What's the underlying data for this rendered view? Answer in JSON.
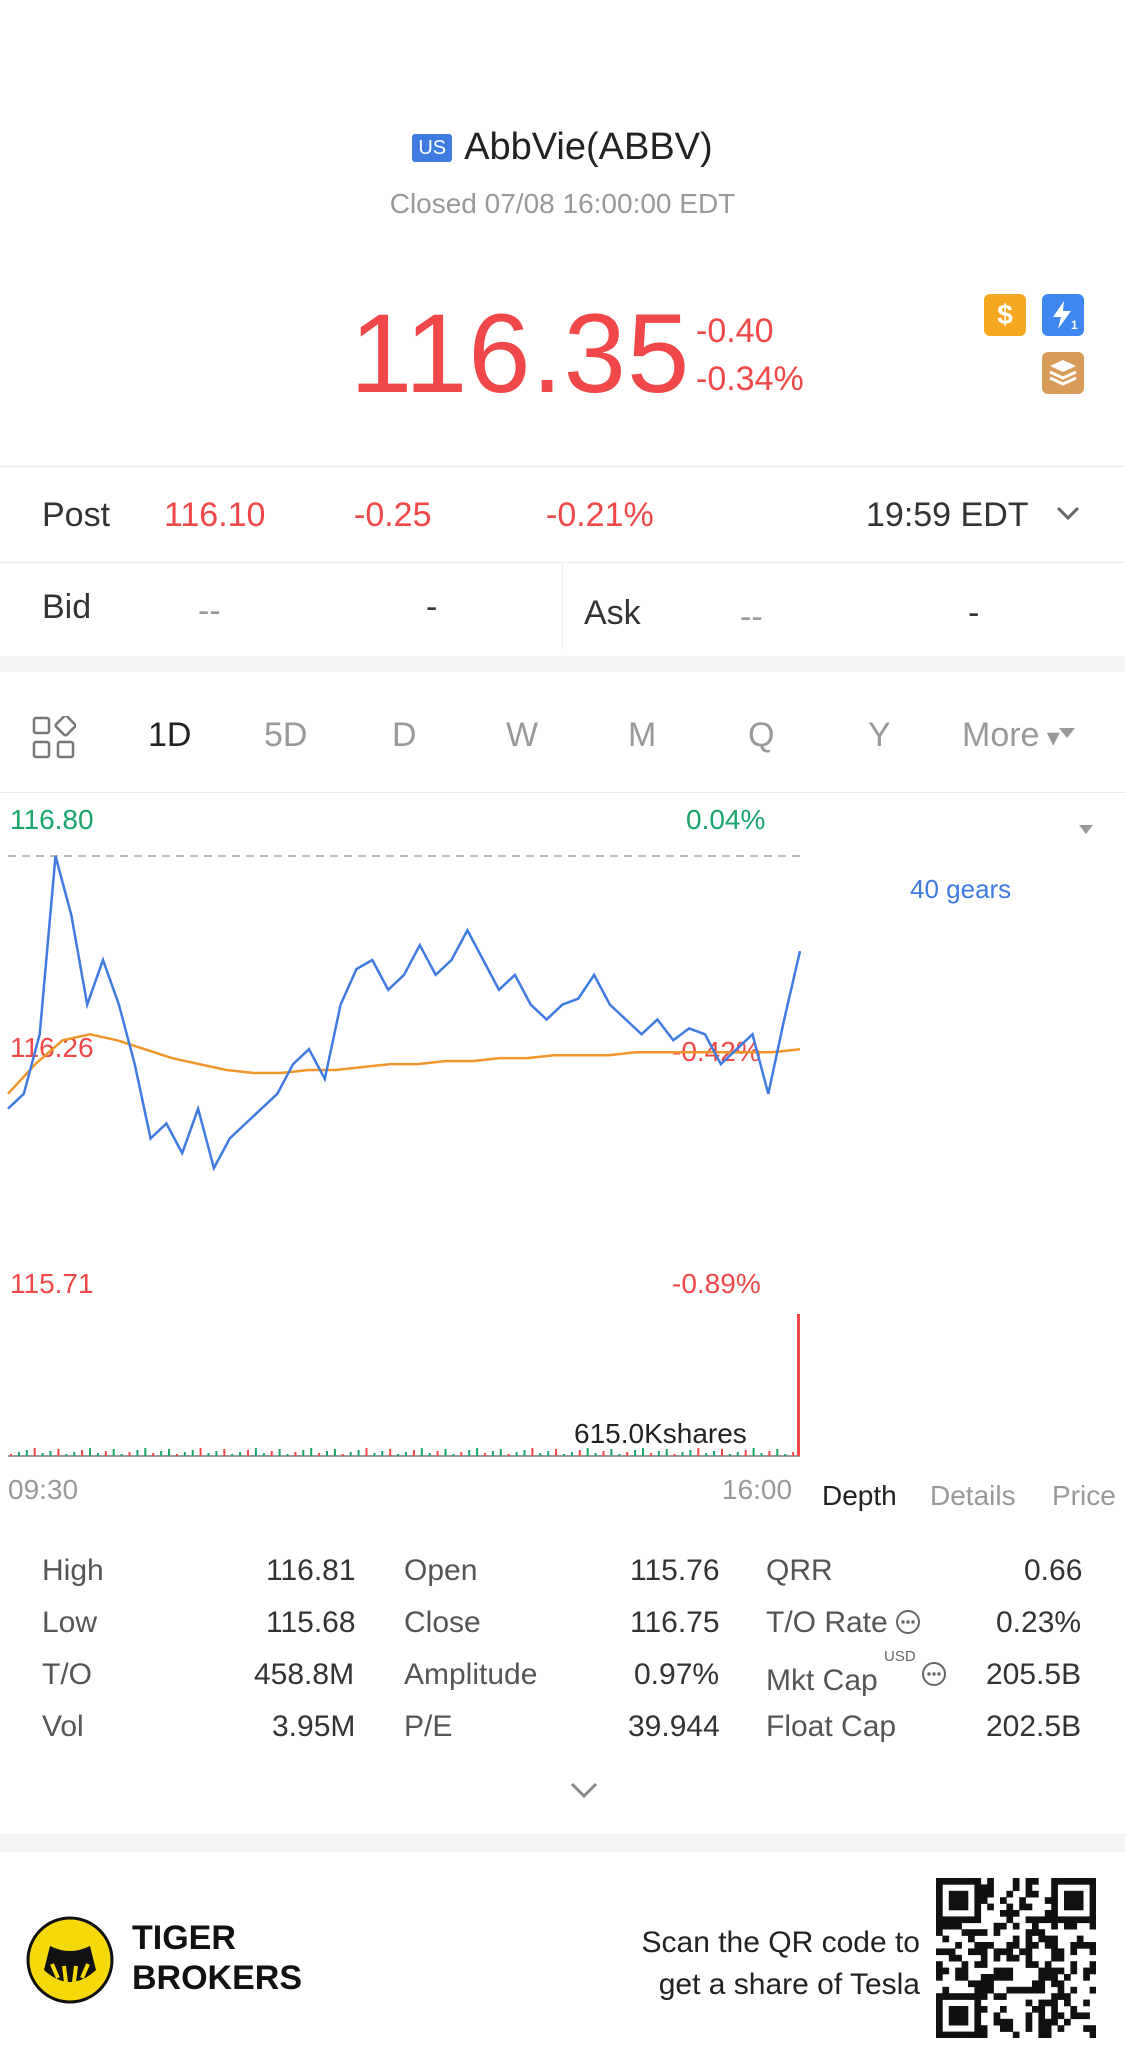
{
  "header": {
    "market_badge": "US",
    "title": "AbbVie(ABBV)",
    "status": "Closed 07/08 16:00:00 EDT",
    "price": "116.35",
    "change": "-0.40",
    "change_pct": "-0.34%",
    "icons": [
      "dollar-icon",
      "lightning-level1-icon",
      "books-a-icon"
    ]
  },
  "post": {
    "label": "Post",
    "price": "116.10",
    "change": "-0.25",
    "change_pct": "-0.21%",
    "time": "19:59 EDT"
  },
  "quote": {
    "bid_label": "Bid",
    "bid_price": "--",
    "bid_size": "-",
    "ask_label": "Ask",
    "ask_price": "--",
    "ask_size": "-"
  },
  "tabs": [
    "1D",
    "5D",
    "D",
    "W",
    "M",
    "Q",
    "Y",
    "More"
  ],
  "active_tab": "1D",
  "chart": {
    "high_label": "116.80",
    "high_pct": "0.04%",
    "mid_label": "116.26",
    "mid_pct": "-0.42%",
    "low_label": "115.71",
    "low_pct": "-0.89%",
    "volume_label": "615.0Kshares",
    "time_start": "09:30",
    "time_end": "16:00",
    "side_label": "40 gears"
  },
  "chart_data": {
    "type": "line",
    "x_range": [
      "09:30",
      "16:00"
    ],
    "ylim": [
      115.71,
      116.8
    ],
    "series": [
      {
        "name": "",
        "values": [
          115.95,
          116.0,
          116.2,
          116.8,
          116.6,
          116.3,
          116.45,
          116.3,
          116.1,
          115.85,
          115.9,
          115.8,
          115.95,
          115.75,
          115.85,
          115.9,
          115.95,
          116.0,
          116.1,
          116.15,
          116.05,
          116.3,
          116.42,
          116.45,
          116.35,
          116.4,
          116.5,
          116.4,
          116.45,
          116.55,
          116.45,
          116.35,
          116.4,
          116.3,
          116.25,
          116.3,
          116.32,
          116.4,
          116.3,
          116.25,
          116.2,
          116.25,
          116.18,
          116.22,
          116.2,
          116.1,
          116.15,
          116.2,
          116.0,
          116.25,
          116.48
        ]
      },
      {
        "name": "",
        "values": [
          116.0,
          116.1,
          116.18,
          116.2,
          116.18,
          116.15,
          116.12,
          116.1,
          116.08,
          116.07,
          116.07,
          116.08,
          116.08,
          116.09,
          116.1,
          116.1,
          116.11,
          116.11,
          116.12,
          116.12,
          116.13,
          116.13,
          116.13,
          116.14,
          116.14,
          116.14,
          116.14,
          116.14,
          116.14,
          116.15
        ]
      }
    ]
  },
  "panel_tabs": [
    "Depth",
    "Details",
    "Price"
  ],
  "stats": [
    [
      {
        "label": "High",
        "value": "116.81"
      },
      {
        "label": "Open",
        "value": "115.76"
      },
      {
        "label": "QRR",
        "value": "0.66"
      }
    ],
    [
      {
        "label": "Low",
        "value": "115.68"
      },
      {
        "label": "Close",
        "value": "116.75"
      },
      {
        "label": "T/O Rate",
        "value": "0.23%"
      }
    ],
    [
      {
        "label": "T/O",
        "value": "458.8M"
      },
      {
        "label": "Amplitude",
        "value": "0.97%"
      },
      {
        "label": "Mkt Cap",
        "value": "205.5B"
      }
    ],
    [
      {
        "label": "Vol",
        "value": "3.95M"
      },
      {
        "label": "P/E",
        "value": "39.944"
      },
      {
        "label": "Float Cap",
        "value": "202.5B"
      }
    ]
  ],
  "mkt_cap_unit": "USD",
  "footer": {
    "brand_line1": "TIGER",
    "brand_line2": "BROKERS",
    "promo_line1": "Scan the QR code to",
    "promo_line2": "get a share of Tesla"
  },
  "colors": {
    "down": "#f04848",
    "up": "#1aa56a",
    "accent": "#3f7be0",
    "avg": "#f0962a"
  }
}
